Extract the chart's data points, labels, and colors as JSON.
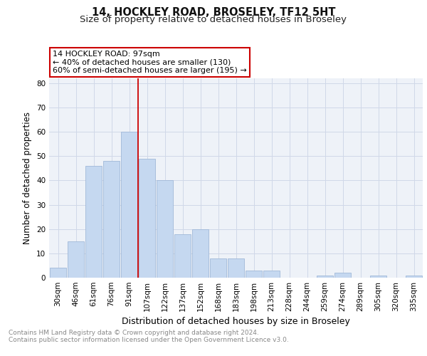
{
  "title": "14, HOCKLEY ROAD, BROSELEY, TF12 5HT",
  "subtitle": "Size of property relative to detached houses in Broseley",
  "xlabel": "Distribution of detached houses by size in Broseley",
  "ylabel": "Number of detached properties",
  "categories": [
    "30sqm",
    "46sqm",
    "61sqm",
    "76sqm",
    "91sqm",
    "107sqm",
    "122sqm",
    "137sqm",
    "152sqm",
    "168sqm",
    "183sqm",
    "198sqm",
    "213sqm",
    "228sqm",
    "244sqm",
    "259sqm",
    "274sqm",
    "289sqm",
    "305sqm",
    "320sqm",
    "335sqm"
  ],
  "values": [
    4,
    15,
    46,
    48,
    60,
    49,
    40,
    18,
    20,
    8,
    8,
    3,
    3,
    0,
    0,
    1,
    2,
    0,
    1,
    0,
    1
  ],
  "bar_color": "#c5d8f0",
  "bar_edge_color": "#a0b8d8",
  "vline_x_index": 4.5,
  "vline_color": "#cc0000",
  "annotation_line1": "14 HOCKLEY ROAD: 97sqm",
  "annotation_line2": "← 40% of detached houses are smaller (130)",
  "annotation_line3": "60% of semi-detached houses are larger (195) →",
  "annotation_box_color": "#ffffff",
  "annotation_box_edge_color": "#cc0000",
  "ylim": [
    0,
    82
  ],
  "yticks": [
    0,
    10,
    20,
    30,
    40,
    50,
    60,
    70,
    80
  ],
  "grid_color": "#d0d8e8",
  "background_color": "#eef2f8",
  "footer_line1": "Contains HM Land Registry data © Crown copyright and database right 2024.",
  "footer_line2": "Contains public sector information licensed under the Open Government Licence v3.0.",
  "title_fontsize": 10.5,
  "subtitle_fontsize": 9.5,
  "xlabel_fontsize": 9,
  "ylabel_fontsize": 8.5,
  "tick_fontsize": 7.5,
  "annotation_fontsize": 8,
  "footer_fontsize": 6.5
}
